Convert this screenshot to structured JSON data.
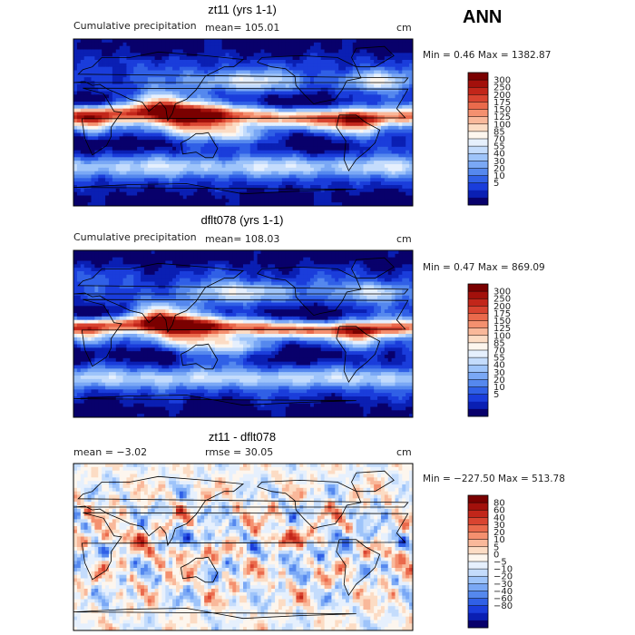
{
  "season_label": "ANN",
  "colors": {
    "prec_scale": [
      "#08006b",
      "#0a1fb3",
      "#1a3ddb",
      "#3060e6",
      "#5588ee",
      "#7aa8f5",
      "#9ec4fa",
      "#c4dcfc",
      "#e6f0fd",
      "#fdf6ee",
      "#fcdcc4",
      "#f9b89a",
      "#f4906f",
      "#ea6a4c",
      "#d94430",
      "#c2261a",
      "#a3100b",
      "#7a0000"
    ],
    "diff_scale": [
      "#08006b",
      "#0a1fb3",
      "#1a3ddb",
      "#3060e6",
      "#5588ee",
      "#7aa8f5",
      "#9ec4fa",
      "#c4dcfc",
      "#e6f0fd",
      "#fdf6ee",
      "#fcdcc4",
      "#f9b89a",
      "#f4906f",
      "#ea6a4c",
      "#d94430",
      "#c2261a",
      "#a3100b",
      "#7a0000"
    ]
  },
  "panels": [
    {
      "title": "zt11 (yrs 1-1)",
      "left_label": "Cumulative precipitation",
      "stat_label": "mean= 105.01",
      "units": "cm",
      "minmax": "Min =   0.46  Max = 1382.87",
      "colorbar_labels": [
        "300",
        "250",
        "200",
        "175",
        "150",
        "125",
        "100",
        "85",
        "70",
        "55",
        "40",
        "30",
        "20",
        "10",
        "5"
      ]
    },
    {
      "title": "dflt078 (yrs 1-1)",
      "left_label": "Cumulative precipitation",
      "stat_label": "mean= 108.03",
      "units": "cm",
      "minmax": "Min =   0.47  Max = 869.09",
      "colorbar_labels": [
        "300",
        "250",
        "200",
        "175",
        "150",
        "125",
        "100",
        "85",
        "70",
        "55",
        "40",
        "30",
        "20",
        "10",
        "5"
      ]
    },
    {
      "title": "zt11 - dflt078",
      "left_label": "mean =   −3.02",
      "stat_label": "rmse =   30.05",
      "units": "cm",
      "minmax": "Min = −227.50  Max = 513.78",
      "colorbar_labels": [
        "80",
        "60",
        "40",
        "30",
        "20",
        "10",
        "5",
        "0",
        "−5",
        "−10",
        "−20",
        "−30",
        "−40",
        "−60",
        "−80"
      ]
    }
  ],
  "chart_data": [
    {
      "type": "heatmap",
      "title": "zt11 (yrs 1-1)",
      "subtitle": "Cumulative precipitation",
      "mean": 105.01,
      "units": "cm",
      "min": 0.46,
      "max": 1382.87,
      "contour_levels": [
        5,
        10,
        20,
        30,
        40,
        55,
        70,
        85,
        100,
        125,
        150,
        175,
        200,
        250,
        300
      ]
    },
    {
      "type": "heatmap",
      "title": "dflt078 (yrs 1-1)",
      "subtitle": "Cumulative precipitation",
      "mean": 108.03,
      "units": "cm",
      "min": 0.47,
      "max": 869.09,
      "contour_levels": [
        5,
        10,
        20,
        30,
        40,
        55,
        70,
        85,
        100,
        125,
        150,
        175,
        200,
        250,
        300
      ]
    },
    {
      "type": "heatmap",
      "title": "zt11 - dflt078",
      "mean": -3.02,
      "rmse": 30.05,
      "units": "cm",
      "min": -227.5,
      "max": 513.78,
      "contour_levels": [
        -80,
        -60,
        -40,
        -30,
        -20,
        -10,
        -5,
        0,
        5,
        10,
        20,
        30,
        40,
        60,
        80
      ]
    }
  ]
}
